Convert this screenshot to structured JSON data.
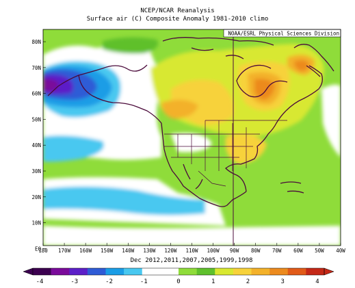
{
  "header": {
    "title": "NCEP/NCAR Reanalysis",
    "subtitle": "Surface air (C) Composite Anomaly 1981-2010 climo",
    "credit": "NOAA/ESRL Physical Sciences Division"
  },
  "footer": {
    "dates": "Dec 2012,2011,2007,2005,1999,1998"
  },
  "axes": {
    "lat_labels": [
      "80N",
      "70N",
      "60N",
      "50N",
      "40N",
      "30N",
      "20N",
      "10N",
      "EQ"
    ],
    "lon_labels": [
      "180",
      "170W",
      "160W",
      "150W",
      "140W",
      "130W",
      "120W",
      "110W",
      "100W",
      "90W",
      "80W",
      "70W",
      "60W",
      "50W",
      "40W"
    ]
  },
  "colorbar": {
    "labels": [
      "-4",
      "-3",
      "-2",
      "-1",
      "0",
      "1",
      "2",
      "3",
      "4"
    ],
    "colors": [
      "#3c0050",
      "#7a0a9a",
      "#5c1fc8",
      "#2f5bd6",
      "#1a9de6",
      "#48c8f0",
      "#ffffff",
      "#ffffff",
      "#8fdc3a",
      "#5fc02c",
      "#d8e830",
      "#f7d23a",
      "#f3b12a",
      "#ec8a1e",
      "#e15a18",
      "#c42817"
    ]
  },
  "map_data": {
    "region": "North Pacific and North America",
    "lat_range": [
      0,
      85
    ],
    "lon_range": [
      -180,
      -40
    ],
    "variable": "Surface air temperature anomaly (C)"
  }
}
